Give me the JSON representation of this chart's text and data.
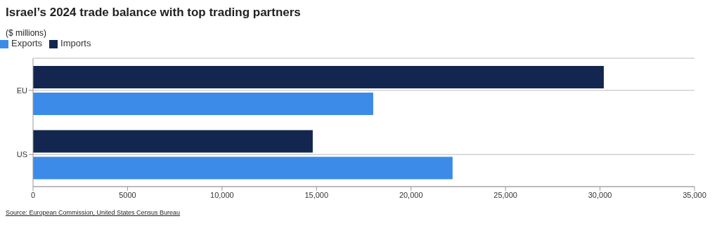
{
  "chart_data": {
    "type": "bar",
    "orientation": "horizontal",
    "title": "Israel’s 2024 trade balance with top trading partners",
    "subtitle": "($ millions)",
    "categories": [
      "EU",
      "US"
    ],
    "series": [
      {
        "name": "Imports",
        "color": "#13264f",
        "values": [
          30200,
          14800
        ]
      },
      {
        "name": "Exports",
        "color": "#3d8be8",
        "values": [
          18000,
          22200
        ]
      }
    ],
    "xlim": [
      0,
      35000
    ],
    "xticks": [
      0,
      {
        "value": 5000,
        "label": "5000"
      },
      {
        "value": 10000,
        "label": "10,000"
      },
      {
        "value": 15000,
        "label": "15,000"
      },
      {
        "value": 20000,
        "label": "20,000"
      },
      {
        "value": 25000,
        "label": "25,000"
      },
      {
        "value": 30000,
        "label": "30,000"
      },
      {
        "value": 35000,
        "label": "35,000"
      }
    ],
    "grid": "y",
    "legend": "top left",
    "annotations": [
      "Source: European Commission, United States Census Bureau"
    ]
  }
}
